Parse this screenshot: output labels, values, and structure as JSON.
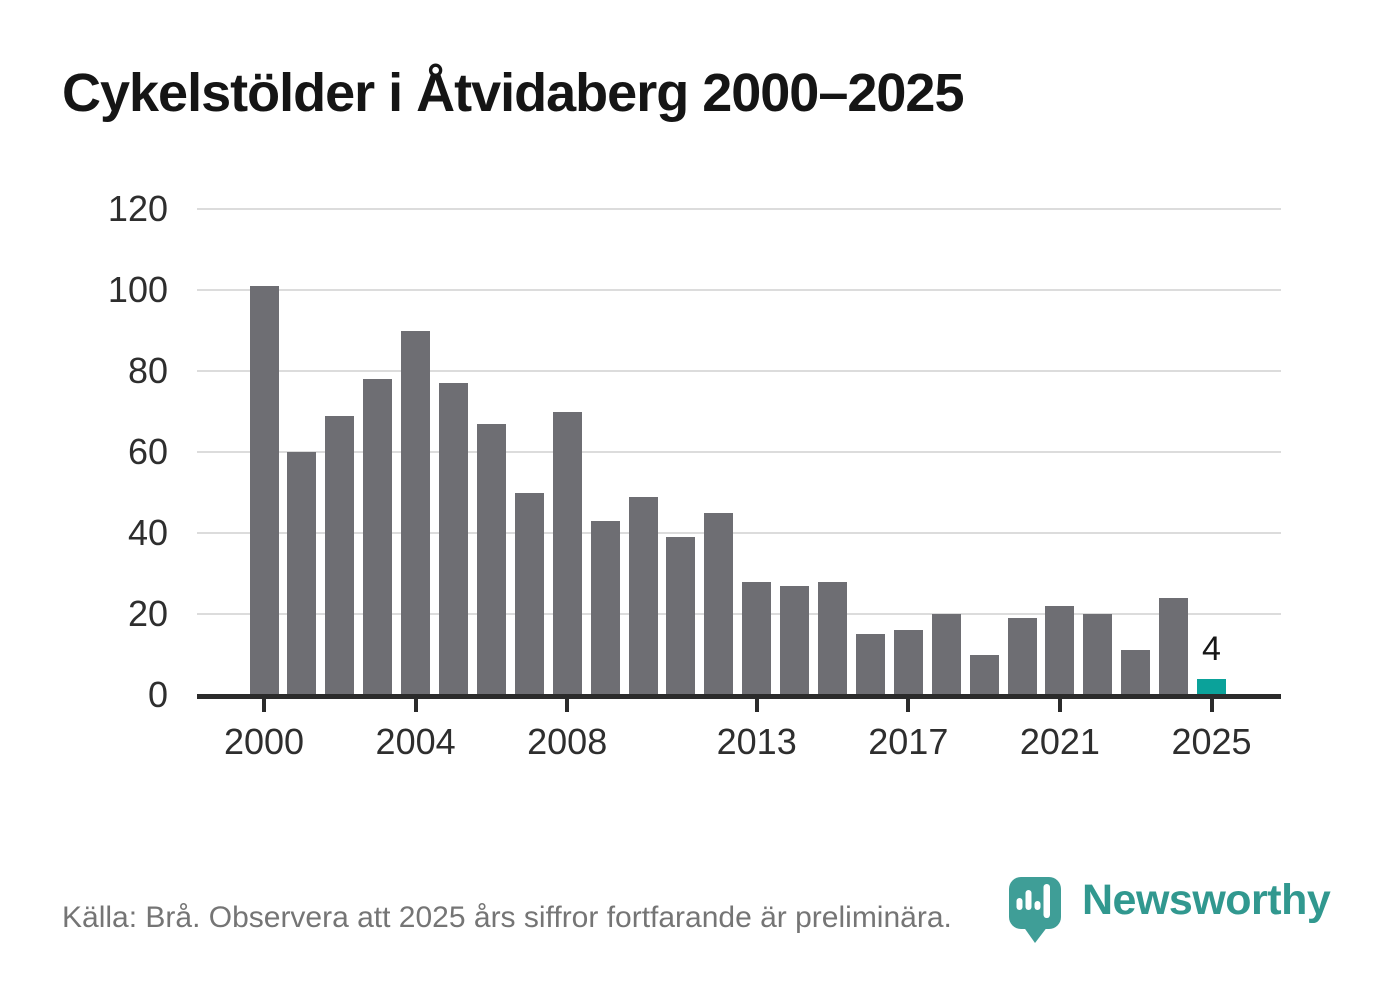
{
  "title": "Cykelstölder i Åtvidaberg 2000–2025",
  "footer": {
    "source_note": "Källa: Brå. Observera att 2025 års siffror fortfarande är preliminära."
  },
  "branding": {
    "wordmark": "Newsworthy",
    "icon": "newsworthy-pin-barchart-icon",
    "icon_color": "#3f9e97",
    "wordmark_color": "#31988f"
  },
  "colors": {
    "bar": "#6e6e73",
    "accent": "#0ba29a",
    "axis": "#2b2b2b",
    "gridline": "#dcdcdc",
    "tick_label": "#2e2e2e",
    "title_text": "#151515",
    "footer_text": "#757575"
  },
  "chart_data": {
    "type": "bar",
    "title": "Cykelstölder i Åtvidaberg 2000–2025",
    "categories": [
      2000,
      2001,
      2002,
      2003,
      2004,
      2005,
      2006,
      2007,
      2008,
      2009,
      2010,
      2011,
      2012,
      2013,
      2014,
      2015,
      2016,
      2017,
      2018,
      2019,
      2020,
      2021,
      2022,
      2023,
      2024,
      2025
    ],
    "values": [
      101,
      60,
      69,
      78,
      90,
      77,
      67,
      50,
      70,
      43,
      49,
      39,
      45,
      28,
      27,
      28,
      15,
      16,
      20,
      10,
      19,
      22,
      20,
      11,
      24,
      4
    ],
    "highlight_category": 2025,
    "bar_label": {
      "category": 2025,
      "text": "4"
    },
    "xlabel": "",
    "ylabel": "",
    "ylim": [
      0,
      120
    ],
    "yticks": [
      0,
      20,
      40,
      60,
      80,
      100,
      120
    ],
    "xtick_labels": [
      2000,
      2004,
      2008,
      2013,
      2017,
      2021,
      2025
    ],
    "grid": "horizontal",
    "legend": "none"
  }
}
